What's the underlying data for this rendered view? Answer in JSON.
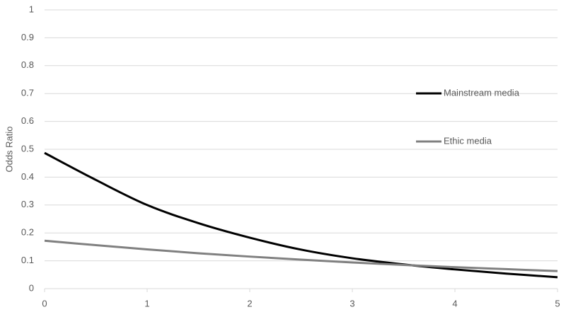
{
  "chart_data": {
    "type": "line",
    "y_label": "Odds Ratio",
    "x": [
      0,
      0.5,
      1,
      1.5,
      2,
      2.5,
      3,
      3.5,
      4,
      4.5,
      5
    ],
    "series": [
      {
        "name": "Mainstream media",
        "color": "#000000",
        "values": [
          0.487,
          0.39,
          0.3,
          0.235,
          0.183,
          0.14,
          0.109,
          0.087,
          0.069,
          0.054,
          0.041
        ]
      },
      {
        "name": "Ethic media",
        "color": "#808080",
        "values": [
          0.172,
          0.156,
          0.141,
          0.127,
          0.115,
          0.104,
          0.094,
          0.085,
          0.077,
          0.07,
          0.063
        ]
      }
    ],
    "xlim": [
      0,
      5
    ],
    "xticks": [
      0,
      1,
      2,
      3,
      4,
      5
    ],
    "ylim": [
      0,
      1
    ],
    "yticks": [
      0,
      0.1,
      0.2,
      0.3,
      0.4,
      0.5,
      0.6,
      0.7,
      0.8,
      0.9,
      1
    ],
    "grid": true,
    "legend": "right"
  }
}
